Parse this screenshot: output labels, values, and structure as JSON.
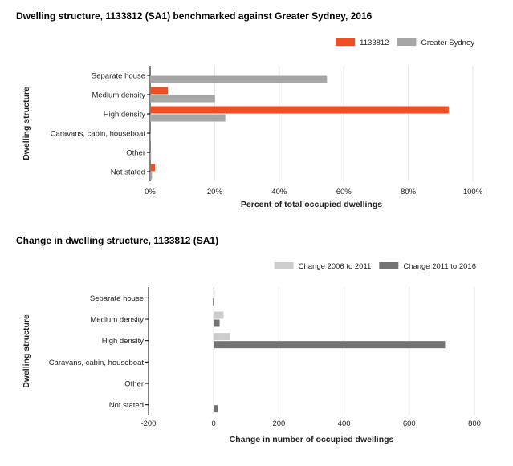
{
  "chart_data": [
    {
      "type": "bar",
      "orientation": "horizontal",
      "title": "Dwelling structure, 1133812 (SA1) benchmarked against Greater Sydney, 2016",
      "xlabel": "Percent of total occupied dwellings",
      "ylabel": "Dwelling structure",
      "categories": [
        "Separate house",
        "Medium density",
        "High density",
        "Caravans, cabin, houseboat",
        "Other",
        "Not stated"
      ],
      "xlim": [
        0,
        100
      ],
      "xticks": [
        0,
        20,
        40,
        60,
        80,
        100
      ],
      "xtick_labels": [
        "0%",
        "20%",
        "40%",
        "60%",
        "80%",
        "100%"
      ],
      "grid": true,
      "legend_position": "top-right",
      "series": [
        {
          "name": "1133812",
          "color": "#f04e23",
          "values": [
            0,
            5.5,
            92.5,
            0,
            0,
            1.5
          ]
        },
        {
          "name": "Greater Sydney",
          "color": "#a6a6a6",
          "values": [
            54.8,
            20.1,
            23.3,
            0.2,
            0.3,
            0.6
          ]
        }
      ]
    },
    {
      "type": "bar",
      "orientation": "horizontal",
      "title": "Change in dwelling structure, 1133812 (SA1)",
      "xlabel": "Change in number of occupied dwellings",
      "ylabel": "Dwelling structure",
      "categories": [
        "Separate house",
        "Medium density",
        "High density",
        "Caravans, cabin, houseboat",
        "Other",
        "Not stated"
      ],
      "xlim": [
        -200,
        800
      ],
      "xticks": [
        -200,
        0,
        200,
        400,
        600,
        800
      ],
      "xtick_labels": [
        "-200",
        "0",
        "200",
        "400",
        "600",
        "800"
      ],
      "grid": true,
      "legend_position": "top-right",
      "series": [
        {
          "name": "Change 2006 to 2011",
          "color": "#cccccc",
          "values": [
            3,
            30,
            50,
            0,
            0,
            0
          ]
        },
        {
          "name": "Change 2011 to 2016",
          "color": "#737373",
          "values": [
            -3,
            18,
            710,
            0,
            0,
            12
          ]
        }
      ]
    }
  ]
}
